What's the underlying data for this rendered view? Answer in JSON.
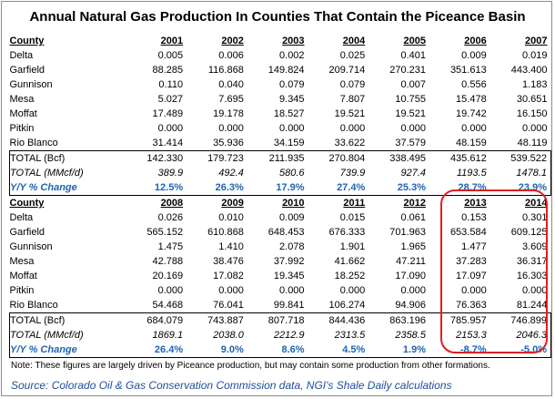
{
  "title": "Annual Natural Gas Production In Counties That Contain the Piceance Basin",
  "header_label": "County",
  "chart_data": [
    {
      "type": "table",
      "columns": [
        "County",
        "2001",
        "2002",
        "2003",
        "2004",
        "2005",
        "2006",
        "2007"
      ],
      "rows": [
        [
          "Delta",
          "0.005",
          "0.006",
          "0.002",
          "0.025",
          "0.401",
          "0.009",
          "0.019"
        ],
        [
          "Garfield",
          "88.285",
          "116.868",
          "149.824",
          "209.714",
          "270.231",
          "351.613",
          "443.400"
        ],
        [
          "Gunnison",
          "0.110",
          "0.040",
          "0.079",
          "0.079",
          "0.007",
          "0.556",
          "1.183"
        ],
        [
          "Mesa",
          "5.027",
          "7.695",
          "9.345",
          "7.807",
          "10.755",
          "15.478",
          "30.651"
        ],
        [
          "Moffat",
          "17.489",
          "19.178",
          "18.527",
          "19.521",
          "19.521",
          "19.742",
          "16.150"
        ],
        [
          "Pitkin",
          "0.000",
          "0.000",
          "0.000",
          "0.000",
          "0.000",
          "0.000",
          "0.000"
        ],
        [
          "Rio Blanco",
          "31.414",
          "35.936",
          "34.159",
          "33.622",
          "37.579",
          "48.159",
          "48.119"
        ]
      ],
      "total_bcf": [
        "TOTAL (Bcf)",
        "142.330",
        "179.723",
        "211.935",
        "270.804",
        "338.495",
        "435.612",
        "539.522"
      ],
      "total_mmcfd": [
        "TOTAL (MMcf/d)",
        "389.9",
        "492.4",
        "580.6",
        "739.9",
        "927.4",
        "1193.5",
        "1478.1"
      ],
      "yy_change": [
        "Y/Y % Change",
        "12.5%",
        "26.3%",
        "17.9%",
        "27.4%",
        "25.3%",
        "28.7%",
        "23.9%"
      ]
    },
    {
      "type": "table",
      "columns": [
        "County",
        "2008",
        "2009",
        "2010",
        "2011",
        "2012",
        "2013",
        "2014"
      ],
      "rows": [
        [
          "Delta",
          "0.026",
          "0.010",
          "0.009",
          "0.015",
          "0.061",
          "0.153",
          "0.301"
        ],
        [
          "Garfield",
          "565.152",
          "610.868",
          "648.453",
          "676.333",
          "701.963",
          "653.584",
          "609.125"
        ],
        [
          "Gunnison",
          "1.475",
          "1.410",
          "2.078",
          "1.901",
          "1.965",
          "1.477",
          "3.609"
        ],
        [
          "Mesa",
          "42.788",
          "38.476",
          "37.992",
          "41.662",
          "47.211",
          "37.283",
          "36.317"
        ],
        [
          "Moffat",
          "20.169",
          "17.082",
          "19.345",
          "18.252",
          "17.090",
          "17.097",
          "16.303"
        ],
        [
          "Pitkin",
          "0.000",
          "0.000",
          "0.000",
          "0.000",
          "0.000",
          "0.000",
          "0.000"
        ],
        [
          "Rio Blanco",
          "54.468",
          "76.041",
          "99.841",
          "106.274",
          "94.906",
          "76.363",
          "81.244"
        ]
      ],
      "total_bcf": [
        "TOTAL (Bcf)",
        "684.079",
        "743.887",
        "807.718",
        "844.436",
        "863.196",
        "785.957",
        "746.899"
      ],
      "total_mmcfd": [
        "TOTAL (MMcf/d)",
        "1869.1",
        "2038.0",
        "2212.9",
        "2313.5",
        "2358.5",
        "2153.3",
        "2046.3"
      ],
      "yy_change": [
        "Y/Y % Change",
        "26.4%",
        "9.0%",
        "8.6%",
        "4.5%",
        "1.9%",
        "-8.7%",
        "-5.0%"
      ]
    }
  ],
  "note": "Note: These figures are largely driven by Piceance production, but may contain some production from other formations.",
  "source": "Source: Colorado Oil & Gas Conservation Commission data, NGI's Shale Daily calculations",
  "colors": {
    "yy_text": "#1f63b4",
    "highlight_border": "#e02020",
    "source_text": "#1f4e9c"
  }
}
